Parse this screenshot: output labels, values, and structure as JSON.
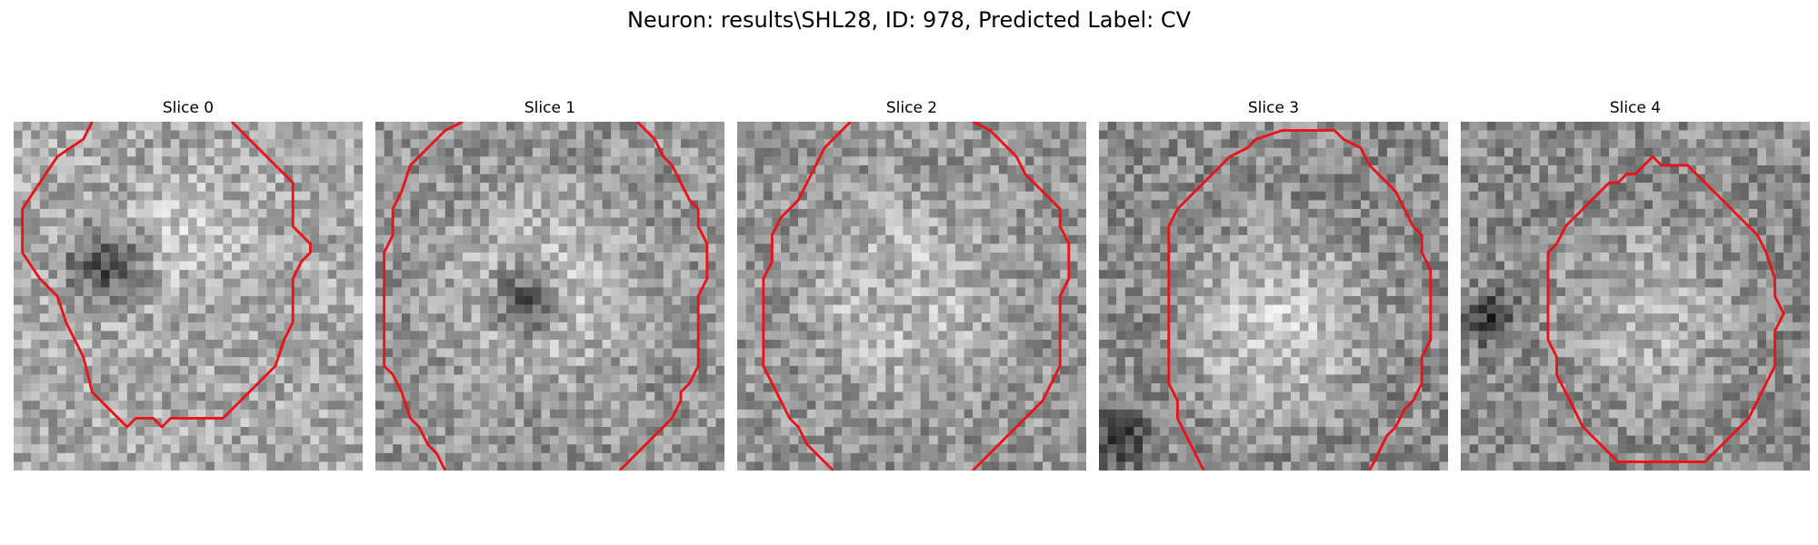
{
  "figure": {
    "title": "Neuron: results\\SHL28, ID: 978, Predicted Label: CV",
    "contour_color": "#e8141a"
  },
  "panels": [
    {
      "title": "Slice 0",
      "base_gray": 170,
      "dark_blobs": [
        {
          "cx": 10,
          "cy": 16,
          "r": 6.5,
          "depth": 100
        }
      ],
      "light_blobs": [
        {
          "cx": 20,
          "cy": 12,
          "r": 9,
          "boost": 25
        }
      ],
      "contour": [
        [
          9,
          0
        ],
        [
          8,
          2
        ],
        [
          5,
          4
        ],
        [
          3,
          7
        ],
        [
          1,
          10
        ],
        [
          1,
          15
        ],
        [
          3,
          18
        ],
        [
          5,
          20
        ],
        [
          6,
          23
        ],
        [
          8,
          27
        ],
        [
          9,
          31
        ],
        [
          11,
          33
        ],
        [
          13,
          35
        ],
        [
          14,
          34
        ],
        [
          16,
          34
        ],
        [
          17,
          35
        ],
        [
          18,
          34
        ],
        [
          20,
          34
        ],
        [
          22,
          34
        ],
        [
          24,
          34
        ],
        [
          26,
          32
        ],
        [
          28,
          30
        ],
        [
          30,
          28
        ],
        [
          31,
          25
        ],
        [
          32,
          23
        ],
        [
          32,
          18
        ],
        [
          33,
          16
        ],
        [
          34,
          15
        ],
        [
          34,
          14
        ],
        [
          33,
          13
        ],
        [
          32,
          12
        ],
        [
          32,
          7
        ],
        [
          30,
          5
        ],
        [
          28,
          3
        ],
        [
          26,
          1
        ],
        [
          25,
          0
        ]
      ],
      "contour_closed": false
    },
    {
      "title": "Slice 1",
      "base_gray": 150,
      "dark_blobs": [
        {
          "cx": 17,
          "cy": 20,
          "r": 6,
          "depth": 120
        }
      ],
      "light_blobs": [
        {
          "cx": 19,
          "cy": 19,
          "r": 15,
          "boost": 45
        }
      ],
      "contour": [
        [
          10,
          0
        ],
        [
          8,
          1
        ],
        [
          6,
          3
        ],
        [
          4,
          5
        ],
        [
          3,
          8
        ],
        [
          2,
          10
        ],
        [
          2,
          13
        ],
        [
          1,
          15
        ],
        [
          1,
          18
        ],
        [
          1,
          28
        ],
        [
          2,
          29
        ],
        [
          3,
          31
        ],
        [
          4,
          34
        ],
        [
          5,
          35
        ],
        [
          6,
          37
        ],
        [
          7,
          38
        ],
        [
          8,
          40
        ]
      ],
      "contour2": [
        [
          30,
          0
        ],
        [
          31,
          1
        ],
        [
          32,
          2
        ],
        [
          33,
          4
        ],
        [
          34,
          5
        ],
        [
          35,
          7
        ],
        [
          36,
          9
        ],
        [
          37,
          10
        ],
        [
          37,
          12
        ],
        [
          38,
          14
        ],
        [
          38,
          18
        ],
        [
          37,
          20
        ],
        [
          37,
          28
        ],
        [
          36,
          30
        ],
        [
          35,
          31
        ],
        [
          35,
          32
        ],
        [
          34,
          34
        ],
        [
          33,
          35
        ],
        [
          32,
          36
        ],
        [
          31,
          37
        ],
        [
          30,
          38
        ],
        [
          29,
          39
        ],
        [
          28,
          40
        ]
      ],
      "contour_closed": false
    },
    {
      "title": "Slice 2",
      "base_gray": 150,
      "dark_blobs": [
        {
          "cx": 18,
          "cy": 20,
          "r": 5,
          "depth": 40
        }
      ],
      "light_blobs": [
        {
          "cx": 19,
          "cy": 20,
          "r": 15,
          "boost": 45
        }
      ],
      "contour": [
        [
          13,
          0
        ],
        [
          11,
          2
        ],
        [
          10,
          3
        ],
        [
          9,
          5
        ],
        [
          8,
          7
        ],
        [
          7,
          9
        ],
        [
          5,
          11
        ],
        [
          4,
          13
        ],
        [
          4,
          16
        ],
        [
          3,
          18
        ],
        [
          3,
          28
        ],
        [
          4,
          30
        ],
        [
          5,
          32
        ],
        [
          6,
          34
        ],
        [
          7,
          35
        ],
        [
          8,
          37
        ],
        [
          9,
          38
        ],
        [
          10,
          39
        ],
        [
          11,
          40
        ]
      ],
      "contour2": [
        [
          27,
          0
        ],
        [
          29,
          1
        ],
        [
          30,
          2
        ],
        [
          31,
          3
        ],
        [
          32,
          4
        ],
        [
          33,
          6
        ],
        [
          34,
          7
        ],
        [
          35,
          8
        ],
        [
          36,
          9
        ],
        [
          37,
          10
        ],
        [
          37,
          12
        ],
        [
          38,
          14
        ],
        [
          38,
          18
        ],
        [
          37,
          20
        ],
        [
          37,
          28
        ],
        [
          36,
          30
        ],
        [
          35,
          32
        ],
        [
          34,
          33
        ],
        [
          33,
          34
        ],
        [
          32,
          35
        ],
        [
          31,
          36
        ],
        [
          30,
          37
        ],
        [
          29,
          38
        ],
        [
          28,
          39
        ],
        [
          27,
          40
        ]
      ],
      "contour_closed": false
    },
    {
      "title": "Slice 3",
      "base_gray": 140,
      "dark_blobs": [
        {
          "cx": 2,
          "cy": 36,
          "r": 5,
          "depth": 90
        }
      ],
      "light_blobs": [
        {
          "cx": 20,
          "cy": 23,
          "r": 15,
          "boost": 55
        }
      ],
      "contour": [
        [
          12,
          40
        ],
        [
          11,
          38
        ],
        [
          10,
          36
        ],
        [
          9,
          34
        ],
        [
          9,
          32
        ],
        [
          8,
          30
        ],
        [
          8,
          22
        ],
        [
          8,
          13
        ],
        [
          8,
          12
        ],
        [
          9,
          10
        ],
        [
          10,
          9
        ],
        [
          11,
          8
        ],
        [
          12,
          7
        ],
        [
          13,
          6
        ],
        [
          14,
          5
        ],
        [
          15,
          4
        ],
        [
          17,
          3
        ],
        [
          18,
          2
        ],
        [
          21,
          1
        ],
        [
          27,
          1
        ],
        [
          28,
          2
        ],
        [
          30,
          3
        ],
        [
          31,
          5
        ],
        [
          32,
          6
        ],
        [
          33,
          7
        ],
        [
          34,
          8
        ],
        [
          35,
          10
        ],
        [
          36,
          12
        ],
        [
          37,
          13
        ],
        [
          37,
          15
        ],
        [
          38,
          17
        ],
        [
          38,
          25
        ],
        [
          37,
          27
        ],
        [
          37,
          30
        ],
        [
          36,
          32
        ],
        [
          35,
          33
        ],
        [
          34,
          35
        ],
        [
          33,
          36
        ],
        [
          32,
          38
        ],
        [
          31,
          40
        ]
      ],
      "contour_closed": false
    },
    {
      "title": "Slice 4",
      "base_gray": 140,
      "dark_blobs": [
        {
          "cx": 3,
          "cy": 22,
          "r": 4,
          "depth": 110
        }
      ],
      "light_blobs": [
        {
          "cx": 21,
          "cy": 22,
          "r": 14,
          "boost": 40
        }
      ],
      "contour": [
        [
          21,
          5
        ],
        [
          20,
          6
        ],
        [
          19,
          6
        ],
        [
          18,
          7
        ],
        [
          17,
          7
        ],
        [
          16,
          8
        ],
        [
          15,
          9
        ],
        [
          14,
          10
        ],
        [
          13,
          11
        ],
        [
          12,
          12
        ],
        [
          11,
          14
        ],
        [
          10,
          15
        ],
        [
          10,
          19
        ],
        [
          10,
          25
        ],
        [
          11,
          27
        ],
        [
          11,
          29
        ],
        [
          12,
          31
        ],
        [
          13,
          33
        ],
        [
          14,
          35
        ],
        [
          15,
          36
        ],
        [
          16,
          37
        ],
        [
          17,
          38
        ],
        [
          18,
          39
        ],
        [
          28,
          39
        ],
        [
          29,
          38
        ],
        [
          30,
          37
        ],
        [
          31,
          36
        ],
        [
          32,
          35
        ],
        [
          33,
          34
        ],
        [
          34,
          32
        ],
        [
          35,
          30
        ],
        [
          36,
          28
        ],
        [
          36,
          24
        ],
        [
          37,
          22
        ],
        [
          36,
          20
        ],
        [
          36,
          18
        ],
        [
          35,
          15
        ],
        [
          34,
          13
        ],
        [
          33,
          12
        ],
        [
          32,
          11
        ],
        [
          31,
          10
        ],
        [
          30,
          9
        ],
        [
          29,
          8
        ],
        [
          28,
          7
        ],
        [
          27,
          6
        ],
        [
          26,
          5
        ],
        [
          23,
          5
        ],
        [
          22,
          4
        ]
      ],
      "contour_closed": true
    }
  ]
}
